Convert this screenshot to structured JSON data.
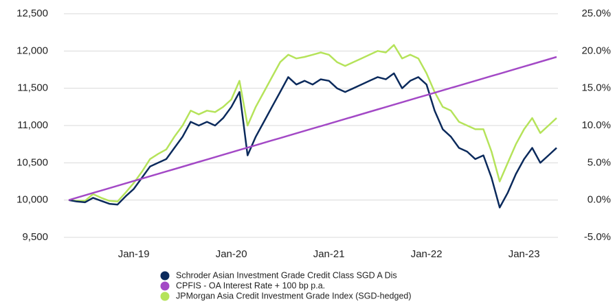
{
  "chart_data": {
    "type": "line",
    "categories": [
      null,
      null,
      null,
      null,
      null,
      null,
      null,
      null,
      "Jan-19",
      null,
      null,
      null,
      null,
      null,
      null,
      null,
      null,
      null,
      null,
      null,
      "Jan-20",
      null,
      null,
      null,
      null,
      null,
      null,
      null,
      null,
      null,
      null,
      null,
      "Jan-21",
      null,
      null,
      null,
      null,
      null,
      null,
      null,
      null,
      null,
      null,
      null,
      "Jan-22",
      null,
      null,
      null,
      null,
      null,
      null,
      null,
      null,
      null,
      null,
      null,
      "Jan-23",
      null,
      null,
      null,
      null
    ],
    "series": [
      {
        "name": "Schroder Asian Investment Grade Credit Class SGD A Dis",
        "color": "#0b2a5c",
        "values": [
          10000,
          9980,
          9970,
          10030,
          9990,
          9950,
          9940,
          10050,
          10150,
          10300,
          10450,
          10500,
          10550,
          10700,
          10850,
          11050,
          11000,
          11050,
          11000,
          11100,
          11250,
          11450,
          10600,
          10850,
          11050,
          11250,
          11450,
          11650,
          11550,
          11600,
          11550,
          11620,
          11600,
          11500,
          11450,
          11500,
          11550,
          11600,
          11650,
          11620,
          11700,
          11500,
          11600,
          11650,
          11550,
          11200,
          10950,
          10850,
          10700,
          10650,
          10550,
          10600,
          10300,
          9900,
          10100,
          10350,
          10550,
          10700,
          10500,
          10600,
          10700
        ]
      },
      {
        "name": "CPFIS - OA Interest Rate + 100 bp p.a.",
        "color": "#a349c6",
        "values": [
          10000,
          10032,
          10064,
          10096,
          10128,
          10160,
          10192,
          10224,
          10256,
          10288,
          10320,
          10352,
          10384,
          10416,
          10448,
          10480,
          10512,
          10544,
          10576,
          10608,
          10640,
          10672,
          10704,
          10736,
          10768,
          10800,
          10832,
          10864,
          10896,
          10928,
          10960,
          10992,
          11024,
          11056,
          11088,
          11120,
          11152,
          11184,
          11216,
          11248,
          11280,
          11312,
          11344,
          11376,
          11408,
          11440,
          11472,
          11504,
          11536,
          11568,
          11600,
          11632,
          11664,
          11696,
          11728,
          11760,
          11792,
          11824,
          11856,
          11888,
          11920
        ]
      },
      {
        "name": "JPMorgan Asia Credit Investment Grade Index (SGD-hedged)",
        "color": "#b5e35a",
        "values": [
          10000,
          9990,
          9990,
          10080,
          10030,
          9990,
          9980,
          10100,
          10230,
          10380,
          10550,
          10620,
          10680,
          10850,
          11000,
          11200,
          11150,
          11200,
          11180,
          11250,
          11350,
          11600,
          11000,
          11250,
          11450,
          11650,
          11850,
          11950,
          11900,
          11920,
          11950,
          11980,
          11950,
          11850,
          11800,
          11850,
          11900,
          11950,
          12000,
          11980,
          12080,
          11900,
          11950,
          11900,
          11700,
          11450,
          11250,
          11200,
          11050,
          11000,
          10950,
          10950,
          10650,
          10250,
          10500,
          10750,
          10950,
          11100,
          10900,
          11000,
          11100
        ]
      }
    ],
    "ylim": [
      9500,
      12500
    ],
    "yticks": [
      {
        "value": 9500,
        "label": "9,500"
      },
      {
        "value": 10000,
        "label": "10,000"
      },
      {
        "value": 10500,
        "label": "10,500"
      },
      {
        "value": 11000,
        "label": "11,000"
      },
      {
        "value": 11500,
        "label": "11,500"
      },
      {
        "value": 12000,
        "label": "12,000"
      },
      {
        "value": 12500,
        "label": "12,500"
      }
    ],
    "y2lim": [
      -5,
      25
    ],
    "y2ticks": [
      {
        "value": -5,
        "label": "-5.0%"
      },
      {
        "value": 0,
        "label": "0.0%"
      },
      {
        "value": 5,
        "label": "5.0%"
      },
      {
        "value": 10,
        "label": "10.0%"
      },
      {
        "value": 15,
        "label": "15.0%"
      },
      {
        "value": 20,
        "label": "20.0%"
      },
      {
        "value": 25,
        "label": "25.0%"
      }
    ],
    "grid": true
  }
}
